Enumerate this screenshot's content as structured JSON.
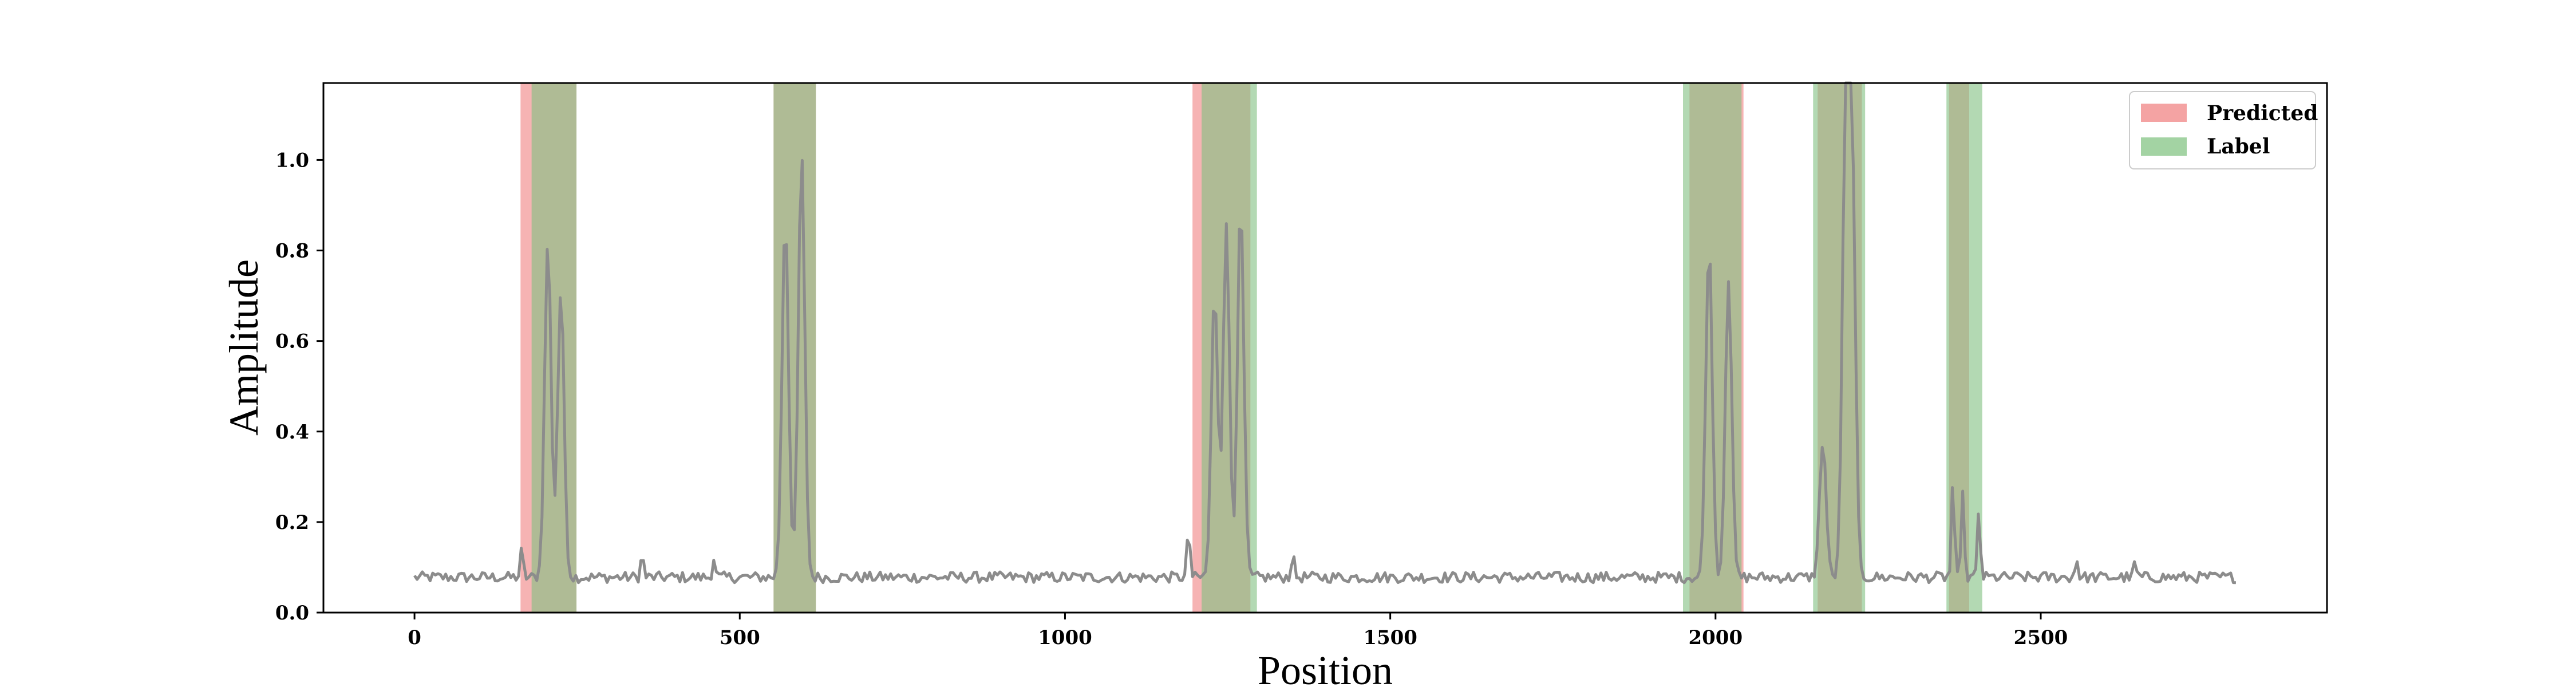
{
  "chart_data": {
    "type": "line",
    "title": "",
    "xlabel": "Position",
    "ylabel": "Amplitude",
    "xlim": [
      -140,
      2940
    ],
    "ylim": [
      0.0,
      1.17
    ],
    "xticks": [
      0,
      500,
      1000,
      1500,
      2000,
      2500
    ],
    "yticks": [
      0.0,
      0.2,
      0.4,
      0.6,
      0.8,
      1.0
    ],
    "xtick_labels": [
      "0",
      "500",
      "1000",
      "1500",
      "2000",
      "2500"
    ],
    "ytick_labels": [
      "0.0",
      "0.2",
      "0.4",
      "0.6",
      "0.8",
      "1.0"
    ],
    "grid": false,
    "legend_position": "top-right",
    "legend": [
      {
        "label": "Predicted",
        "color": "#f4a3a3"
      },
      {
        "label": "Label",
        "color": "#a3d3a3"
      }
    ],
    "series_color": "#8c8c8c",
    "predicted_color": "#f08080",
    "label_color": "#80c080",
    "predicted_regions": [
      [
        163,
        249
      ],
      [
        552,
        617
      ],
      [
        1196,
        1285
      ],
      [
        1960,
        2043
      ],
      [
        2157,
        2225
      ],
      [
        2359,
        2390
      ]
    ],
    "label_regions": [
      [
        180,
        249
      ],
      [
        552,
        617
      ],
      [
        1210,
        1295
      ],
      [
        1950,
        2040
      ],
      [
        2150,
        2230
      ],
      [
        2355,
        2410
      ]
    ],
    "signal": {
      "x_start": 0,
      "x_end": 2800,
      "baseline": 0.078,
      "peaks": [
        {
          "x": 165,
          "height": 0.14
        },
        {
          "x": 205,
          "height": 0.82
        },
        {
          "x": 225,
          "height": 0.71
        },
        {
          "x": 350,
          "height": 0.13
        },
        {
          "x": 460,
          "height": 0.12
        },
        {
          "x": 570,
          "height": 0.88
        },
        {
          "x": 595,
          "height": 1.01
        },
        {
          "x": 1190,
          "height": 0.19
        },
        {
          "x": 1230,
          "height": 0.71
        },
        {
          "x": 1248,
          "height": 0.85
        },
        {
          "x": 1270,
          "height": 0.9
        },
        {
          "x": 1350,
          "height": 0.13
        },
        {
          "x": 1990,
          "height": 0.82
        },
        {
          "x": 2020,
          "height": 0.74
        },
        {
          "x": 2165,
          "height": 0.38
        },
        {
          "x": 2200,
          "height": 1.07
        },
        {
          "x": 2210,
          "height": 1.01
        },
        {
          "x": 2365,
          "height": 0.3
        },
        {
          "x": 2380,
          "height": 0.28
        },
        {
          "x": 2405,
          "height": 0.23
        },
        {
          "x": 2555,
          "height": 0.12
        },
        {
          "x": 2645,
          "height": 0.11
        }
      ]
    }
  }
}
